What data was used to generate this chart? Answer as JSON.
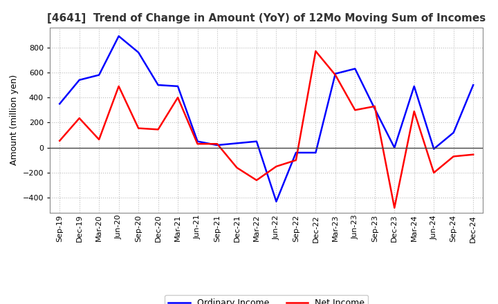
{
  "title": "[4641]  Trend of Change in Amount (YoY) of 12Mo Moving Sum of Incomes",
  "ylabel": "Amount (million yen)",
  "x_labels": [
    "Sep-19",
    "Dec-19",
    "Mar-20",
    "Jun-20",
    "Sep-20",
    "Dec-20",
    "Mar-21",
    "Jun-21",
    "Sep-21",
    "Dec-21",
    "Mar-22",
    "Jun-22",
    "Sep-22",
    "Dec-22",
    "Mar-23",
    "Jun-23",
    "Sep-23",
    "Dec-23",
    "Mar-24",
    "Jun-24",
    "Sep-24",
    "Dec-24"
  ],
  "ordinary_income": [
    350,
    540,
    580,
    890,
    760,
    500,
    490,
    50,
    20,
    35,
    50,
    -430,
    -40,
    -40,
    590,
    630,
    310,
    0,
    490,
    -10,
    120,
    500
  ],
  "net_income": [
    55,
    235,
    65,
    490,
    155,
    145,
    400,
    30,
    30,
    -160,
    -260,
    -150,
    -100,
    770,
    580,
    300,
    330,
    -480,
    290,
    -200,
    -70,
    -55
  ],
  "ordinary_color": "#0000ff",
  "net_color": "#ff0000",
  "ylim": [
    -520,
    960
  ],
  "yticks": [
    -400,
    -200,
    0,
    200,
    400,
    600,
    800
  ],
  "background_color": "#ffffff",
  "grid_color": "#bbbbbb",
  "zero_line_color": "#444444",
  "title_color": "#333333",
  "title_fontsize": 11,
  "ylabel_fontsize": 9,
  "tick_fontsize": 8,
  "legend_fontsize": 9,
  "linewidth": 1.8
}
